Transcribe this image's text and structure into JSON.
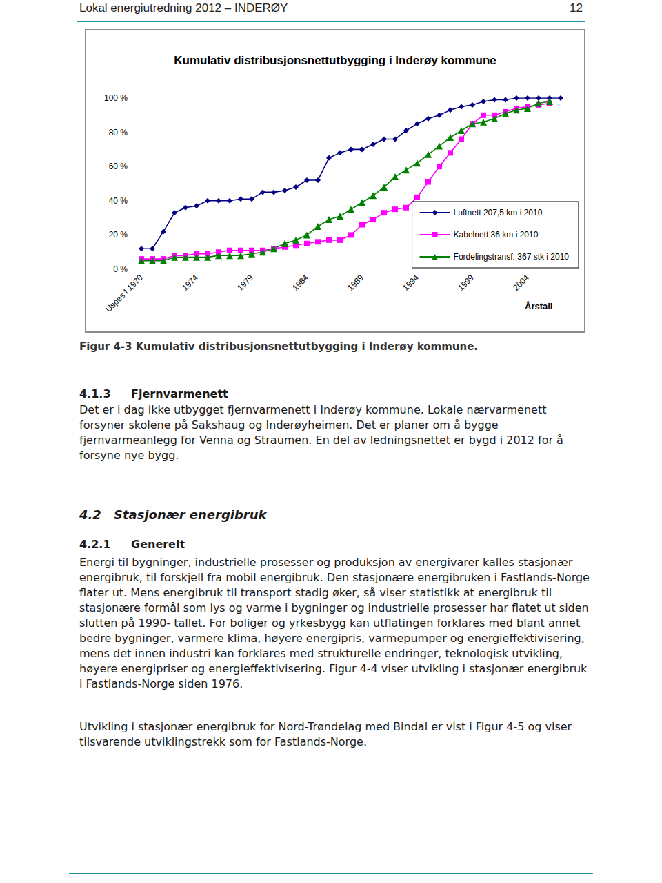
{
  "header": {
    "left": "Lokal energiutredning 2012 – INDERØY",
    "page": "12"
  },
  "chart_data": {
    "type": "line",
    "title": "Kumulativ distribusjonsnettutbygging i Inderøy kommune",
    "x_label": "Årstall",
    "categories": [
      "Uspes f 1970",
      null,
      null,
      null,
      null,
      "1974",
      null,
      null,
      null,
      null,
      "1979",
      null,
      null,
      null,
      null,
      "1984",
      null,
      null,
      null,
      null,
      "1989",
      null,
      null,
      null,
      null,
      "1994",
      null,
      null,
      null,
      null,
      "1999",
      null,
      null,
      null,
      null,
      "2004",
      null,
      null,
      null
    ],
    "series": [
      {
        "name": "Luftnett 207,5 km i 2010",
        "color": "#000080",
        "marker": "diamond",
        "values": [
          12,
          12,
          22,
          33,
          36,
          37,
          40,
          40,
          40,
          41,
          41,
          45,
          45,
          46,
          48,
          52,
          52,
          65,
          68,
          70,
          70,
          73,
          76,
          76,
          81,
          85,
          88,
          90,
          93,
          95,
          96,
          98,
          99,
          99,
          100,
          100,
          100,
          100,
          100
        ]
      },
      {
        "name": "Kabelnett 36 km i 2010",
        "color": "#ff00ff",
        "marker": "square",
        "values": [
          6,
          6,
          6,
          8,
          8,
          9,
          9,
          10,
          11,
          11,
          11,
          11,
          12,
          13,
          14,
          15,
          16,
          17,
          17,
          20,
          26,
          29,
          33,
          35,
          36,
          42,
          51,
          60,
          68,
          76,
          85,
          90,
          90,
          92,
          94,
          95,
          96,
          97,
          null
        ]
      },
      {
        "name": "Fordelingstransf. 367 stk i 2010",
        "color": "#008000",
        "marker": "triangle",
        "values": [
          5,
          5,
          5,
          7,
          7,
          7,
          7,
          8,
          8,
          8,
          9,
          10,
          12,
          15,
          17,
          20,
          25,
          29,
          31,
          35,
          39,
          43,
          48,
          54,
          58,
          62,
          67,
          72,
          77,
          81,
          85,
          86,
          88,
          91,
          93,
          94,
          97,
          98,
          null
        ]
      }
    ],
    "ylim": [
      0,
      100
    ],
    "yticks": [
      {
        "value": 0,
        "label": "0 %"
      },
      {
        "value": 20,
        "label": "20 %"
      },
      {
        "value": 40,
        "label": "40 %"
      },
      {
        "value": 60,
        "label": "60 %"
      },
      {
        "value": 80,
        "label": "80 %"
      },
      {
        "value": 100,
        "label": "100 %"
      }
    ],
    "grid": false,
    "legend": "right"
  },
  "caption": "Figur 4-3 Kumulativ distribusjonsnettutbygging i Inderøy kommune.",
  "body": [
    {
      "kind": "h3",
      "number": "4.1.3",
      "text": "Fjernvarmenett"
    },
    {
      "kind": "p",
      "text": "Det er i dag ikke utbygget fjernvarmenett i Inderøy kommune. Lokale nærvarmenett forsyner skolene på Sakshaug og Inderøyheimen. Det er planer om å bygge fjernvarmeanlegg for Venna og Straumen. En del av ledningsnettet er bygd i 2012 for å forsyne nye bygg."
    },
    {
      "kind": "h2",
      "number": "4.2",
      "text": "Stasjonær energibruk"
    },
    {
      "kind": "h3",
      "number": "4.2.1",
      "text": "Generelt"
    },
    {
      "kind": "p",
      "text": "Energi til bygninger, industrielle prosesser og produksjon av energivarer kalles stasjonær energibruk, til forskjell fra mobil energibruk. Den stasjonære energibruken i Fastlands-Norge flater ut. Mens energibruk til transport stadig øker, så viser statistikk at energibruk til stasjonære formål som lys og varme i bygninger og industrielle prosesser har flatet ut siden slutten på 1990- tallet. For boliger og yrkesbygg kan utflatingen forklares med blant annet bedre bygninger, varmere klima, høyere energipris, varmepumper og energieffektivisering, mens det innen industri kan forklares med strukturelle endringer, teknologisk utvikling, høyere energipriser og energieffektivisering. Figur 4-4 viser utvikling i stasjonær energibruk i Fastlands-Norge siden 1976."
    },
    {
      "kind": "p",
      "text": "Utvikling i stasjonær energibruk for Nord-Trøndelag med Bindal er vist i Figur 4-5 og viser tilsvarende utviklingstrekk som for Fastlands-Norge."
    }
  ]
}
